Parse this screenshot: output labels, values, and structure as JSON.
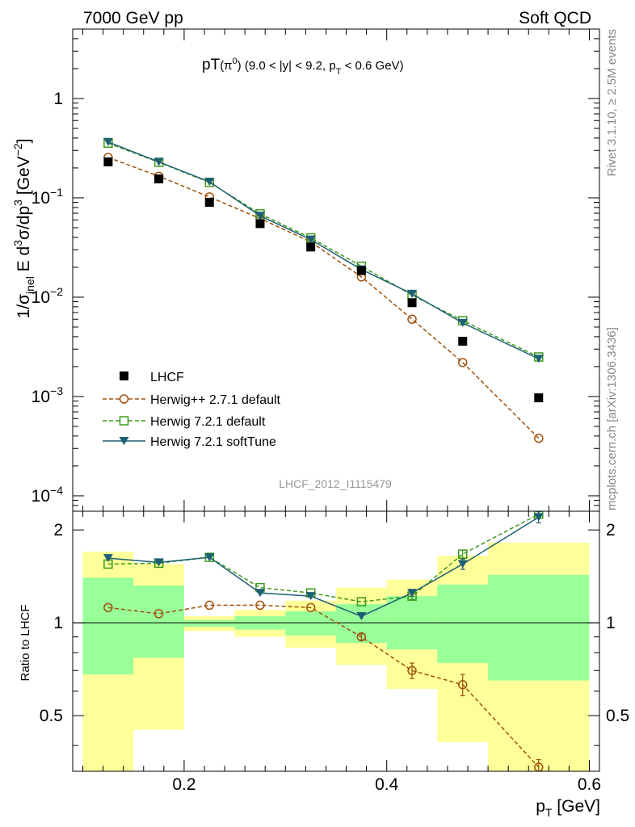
{
  "header": {
    "left": "7000 GeV pp",
    "right": "Soft QCD"
  },
  "title": {
    "prefix": "pT",
    "particle": "(π",
    "particle_sup": "0",
    "particle_close": ")",
    "cuts": "(9.0 < |y| < 9.2, p",
    "cuts_sub": "T",
    "cuts_tail": " < 0.6 GeV)"
  },
  "y_axis_title": {
    "a": "1/σ",
    "a_sub": "inel",
    "b": " E d",
    "b_sup": "3",
    "c": "σ/dp",
    "c_sup": "3",
    "d": " [GeV",
    "d_sup": "−2",
    "e": "]"
  },
  "x_axis_title": {
    "main": "p",
    "sub": "T",
    "unit": " [GeV]"
  },
  "ratio_axis_title": "Ratio to LHCF",
  "side_labels": {
    "rivet": "Rivet 3.1.10, ≥ 2.5M events",
    "mcplots": "mcplots.cern.ch [arXiv:1306.3436]"
  },
  "analysis_label": "LHCF_2012_I1115479",
  "main_y_ticks": [
    {
      "value": 1,
      "base": "1",
      "exp": ""
    },
    {
      "value": 0.1,
      "base": "10",
      "exp": "−1"
    },
    {
      "value": 0.01,
      "base": "10",
      "exp": "−2"
    },
    {
      "value": 0.001,
      "base": "10",
      "exp": "−3"
    },
    {
      "value": 0.0001,
      "base": "10",
      "exp": "−4"
    }
  ],
  "x_ticks": [
    {
      "value": 0.2,
      "label": "0.2"
    },
    {
      "value": 0.4,
      "label": "0.4"
    },
    {
      "value": 0.6,
      "label": "0.6"
    }
  ],
  "ratio_y_ticks": [
    {
      "value": 0.5,
      "label": "0.5"
    },
    {
      "value": 1,
      "label": "1"
    },
    {
      "value": 2,
      "label": "2"
    }
  ],
  "colors": {
    "data": "#000000",
    "herwigpp": "#a0520c",
    "herwig_default": "#3d9a1b",
    "herwig_soft": "#1e5f73",
    "band_outer": "#ffff99",
    "band_inner": "#99ff99"
  },
  "chart_data": {
    "type": "scatter",
    "x_label": "pT [GeV]",
    "y_label": "1/σinel E d3σ/dp3 [GeV−2]",
    "y_scale": "log",
    "xlim": [
      0.09,
      0.61
    ],
    "ylim": [
      7e-05,
      5
    ],
    "ratio_ylim": [
      0.33,
      2.3
    ],
    "ratio_y_scale": "log",
    "legend_position": "bottom-left",
    "bins": [
      [
        0.1,
        0.15
      ],
      [
        0.15,
        0.2
      ],
      [
        0.2,
        0.25
      ],
      [
        0.25,
        0.3
      ],
      [
        0.3,
        0.35
      ],
      [
        0.35,
        0.4
      ],
      [
        0.4,
        0.45
      ],
      [
        0.45,
        0.5
      ],
      [
        0.5,
        0.6
      ]
    ],
    "x": [
      0.125,
      0.175,
      0.225,
      0.275,
      0.325,
      0.375,
      0.425,
      0.475,
      0.55
    ],
    "series": [
      {
        "name": "LHCF",
        "key": "data",
        "marker": "square-filled",
        "line": "none",
        "values": [
          0.23,
          0.155,
          0.09,
          0.055,
          0.032,
          0.0185,
          0.0088,
          0.0036,
          0.00097
        ],
        "ratio": [
          1,
          1,
          1,
          1,
          1,
          1,
          1,
          1,
          1
        ]
      },
      {
        "name": "Herwig++ 2.7.1 default",
        "key": "herwigpp",
        "marker": "circle-open",
        "line": "dashed",
        "values": [
          0.255,
          0.165,
          0.102,
          0.062,
          0.036,
          0.016,
          0.006,
          0.0022,
          0.00038
        ],
        "ratio": [
          1.12,
          1.07,
          1.14,
          1.14,
          1.12,
          0.9,
          0.7,
          0.63,
          0.34
        ],
        "ratio_err": [
          0,
          0,
          0,
          0,
          0,
          0.02,
          0.04,
          0.05,
          0.02
        ]
      },
      {
        "name": "Herwig 7.2.1 default",
        "key": "herwig_default",
        "marker": "square-open",
        "line": "dashed",
        "values": [
          0.355,
          0.228,
          0.143,
          0.069,
          0.0395,
          0.0205,
          0.0105,
          0.0058,
          0.0025
        ],
        "ratio": [
          1.55,
          1.56,
          1.63,
          1.3,
          1.25,
          1.17,
          1.22,
          1.67,
          2.25
        ],
        "ratio_err": [
          0,
          0,
          0,
          0,
          0,
          0,
          0.03,
          0.05,
          0.07
        ]
      },
      {
        "name": "Herwig 7.2.1 softTune",
        "key": "herwig_soft",
        "marker": "triangle-down-filled",
        "line": "solid",
        "values": [
          0.365,
          0.23,
          0.145,
          0.066,
          0.038,
          0.019,
          0.0108,
          0.0055,
          0.0024
        ],
        "ratio": [
          1.62,
          1.57,
          1.63,
          1.25,
          1.22,
          1.05,
          1.25,
          1.55,
          2.2
        ],
        "ratio_err": [
          0,
          0,
          0,
          0,
          0,
          0,
          0.03,
          0.06,
          0.09
        ]
      }
    ],
    "ratio_band_outer": [
      {
        "lo": 0.33,
        "hi": 1.7
      },
      {
        "lo": 0.45,
        "hi": 1.55
      },
      {
        "lo": 0.94,
        "hi": 1.05
      },
      {
        "lo": 0.9,
        "hi": 1.1
      },
      {
        "lo": 0.83,
        "hi": 1.18
      },
      {
        "lo": 0.73,
        "hi": 1.3
      },
      {
        "lo": 0.61,
        "hi": 1.38
      },
      {
        "lo": 0.41,
        "hi": 1.65
      },
      {
        "lo": 0.33,
        "hi": 1.82
      }
    ],
    "ratio_band_inner": [
      {
        "lo": 0.68,
        "hi": 1.4
      },
      {
        "lo": 0.77,
        "hi": 1.32
      },
      {
        "lo": 0.97,
        "hi": 1.02
      },
      {
        "lo": 0.95,
        "hi": 1.05
      },
      {
        "lo": 0.91,
        "hi": 1.09
      },
      {
        "lo": 0.86,
        "hi": 1.15
      },
      {
        "lo": 0.82,
        "hi": 1.22
      },
      {
        "lo": 0.74,
        "hi": 1.33
      },
      {
        "lo": 0.65,
        "hi": 1.43
      }
    ]
  }
}
